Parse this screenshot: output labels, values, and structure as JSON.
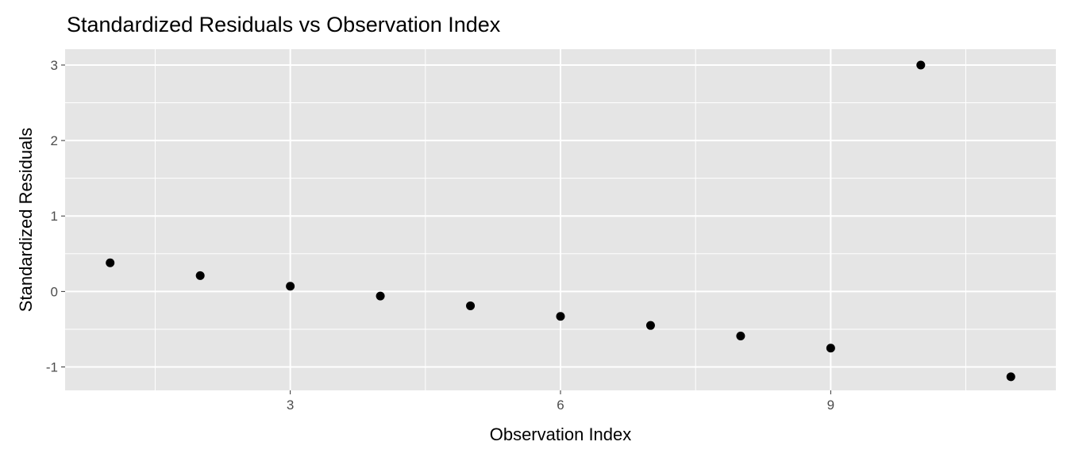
{
  "chart_data": {
    "type": "scatter",
    "title": "Standardized Residuals vs Observation Index",
    "xlabel": "Observation Index",
    "ylabel": "Standardized Residuals",
    "x": [
      1,
      2,
      3,
      4,
      5,
      6,
      7,
      8,
      9,
      10,
      11
    ],
    "y": [
      0.38,
      0.21,
      0.07,
      -0.06,
      -0.19,
      -0.33,
      -0.45,
      -0.59,
      -0.75,
      3.0,
      -1.13
    ],
    "xlim": [
      0.5,
      11.5
    ],
    "ylim": [
      -1.31,
      3.21
    ],
    "xticks": [
      3,
      6,
      9
    ],
    "yticks": [
      -1,
      0,
      1,
      2,
      3
    ],
    "xtick_labels": [
      "3",
      "6",
      "9"
    ],
    "ytick_labels": [
      "-1",
      "0",
      "1",
      "2",
      "3"
    ],
    "grid": true,
    "panel_color": "#e5e5e5",
    "point_color": "#000000"
  }
}
